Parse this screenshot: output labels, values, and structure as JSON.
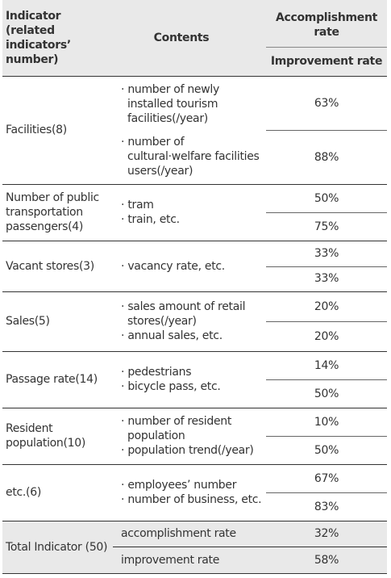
{
  "header": {
    "indicator": "Indicator (related indicators’ number)",
    "contents": "Contents",
    "accomplishment_rate": "Accomplishment rate",
    "improvement_rate": "Improvement rate"
  },
  "rows": [
    {
      "indicator": "Facilities(8)",
      "contents": [
        "number of newly installed tourism facilities(/year)",
        "number of cultural·welfare facilities users(/year)"
      ],
      "rates": [
        "63%",
        "88%"
      ]
    },
    {
      "indicator": "Number of public transportation passengers(4)",
      "contents": [
        "tram",
        "train, etc."
      ],
      "rates": [
        "50%",
        "75%"
      ]
    },
    {
      "indicator": "Vacant stores(3)",
      "contents": [
        "vacancy rate, etc."
      ],
      "rates": [
        "33%",
        "33%"
      ]
    },
    {
      "indicator": "Sales(5)",
      "contents": [
        "sales amount of retail stores(/year)",
        "annual sales, etc."
      ],
      "rates": [
        "20%",
        "20%"
      ]
    },
    {
      "indicator": "Passage rate(14)",
      "contents": [
        "pedestrians",
        "bicycle pass, etc."
      ],
      "rates": [
        "14%",
        "50%"
      ]
    },
    {
      "indicator": "Resident population(10)",
      "contents": [
        "number of resident population",
        "population trend(/year)"
      ],
      "rates": [
        "10%",
        "50%"
      ]
    },
    {
      "indicator": "etc.(6)",
      "contents": [
        "employees’ number",
        "number of business, etc."
      ],
      "rates": [
        "67%",
        "83%"
      ]
    }
  ],
  "total": {
    "indicator": "Total Indicator (50)",
    "items": [
      {
        "label": "accomplishment rate",
        "rate": "32%"
      },
      {
        "label": "improvement rate",
        "rate": "58%"
      }
    ]
  }
}
